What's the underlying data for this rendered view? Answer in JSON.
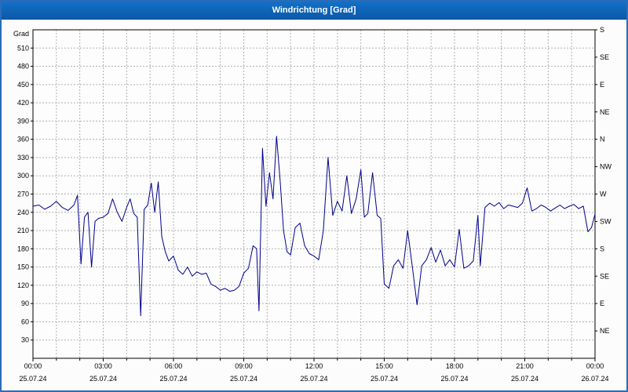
{
  "window": {
    "title": "Windrichtung [Grad]"
  },
  "colors": {
    "titlebar": "#0a5fb4",
    "line": "#00008b",
    "grid": "#b0b0b0",
    "plot_border": "#000000",
    "outer_border": "#2b6cb8",
    "background": "#fcfcfc",
    "plot_background": "#fdfdfd"
  },
  "chart_data": {
    "type": "line",
    "title": "Windrichtung [Grad]",
    "ylabel": "Grad",
    "xlabel": "",
    "xlim": [
      0,
      24
    ],
    "ylim": [
      0,
      540
    ],
    "grid": "dashed, hourly vertical and 30-degree horizontal",
    "legend_position": "none",
    "y_ticks": [
      30,
      60,
      90,
      120,
      150,
      180,
      210,
      240,
      270,
      300,
      330,
      360,
      390,
      420,
      450,
      480,
      510
    ],
    "x_ticks": [
      {
        "h": 0,
        "time": "00:00",
        "date": "25.07.24"
      },
      {
        "h": 3,
        "time": "03:00",
        "date": "25.07.24"
      },
      {
        "h": 6,
        "time": "06:00",
        "date": "25.07.24"
      },
      {
        "h": 9,
        "time": "09:00",
        "date": "25.07.24"
      },
      {
        "h": 12,
        "time": "12:00",
        "date": "25.07.24"
      },
      {
        "h": 15,
        "time": "15:00",
        "date": "25.07.24"
      },
      {
        "h": 18,
        "time": "18:00",
        "date": "25.07.24"
      },
      {
        "h": 21,
        "time": "21:00",
        "date": "25.07.24"
      },
      {
        "h": 24,
        "time": "00:00",
        "date": "26.07.24"
      }
    ],
    "right_axis_labels": [
      {
        "value": 540,
        "label": "S"
      },
      {
        "value": 495,
        "label": "SE"
      },
      {
        "value": 450,
        "label": "E"
      },
      {
        "value": 405,
        "label": "NE"
      },
      {
        "value": 360,
        "label": "N"
      },
      {
        "value": 315,
        "label": "NW"
      },
      {
        "value": 270,
        "label": "W"
      },
      {
        "value": 225,
        "label": "SW"
      },
      {
        "value": 180,
        "label": "S"
      },
      {
        "value": 135,
        "label": "SE"
      },
      {
        "value": 90,
        "label": "E"
      },
      {
        "value": 45,
        "label": "NE"
      }
    ],
    "series": [
      {
        "name": "Windrichtung",
        "unit": "Grad",
        "points": [
          [
            0,
            250
          ],
          [
            0.25,
            252
          ],
          [
            0.5,
            245
          ],
          [
            0.75,
            250
          ],
          [
            1,
            258
          ],
          [
            1.25,
            248
          ],
          [
            1.5,
            243
          ],
          [
            1.75,
            252
          ],
          [
            1.9,
            268
          ],
          [
            2.05,
            155
          ],
          [
            2.2,
            232
          ],
          [
            2.35,
            240
          ],
          [
            2.5,
            150
          ],
          [
            2.65,
            225
          ],
          [
            2.8,
            230
          ],
          [
            3,
            232
          ],
          [
            3.2,
            238
          ],
          [
            3.4,
            262
          ],
          [
            3.6,
            240
          ],
          [
            3.8,
            225
          ],
          [
            4,
            248
          ],
          [
            4.15,
            262
          ],
          [
            4.3,
            238
          ],
          [
            4.45,
            232
          ],
          [
            4.6,
            70
          ],
          [
            4.75,
            245
          ],
          [
            4.9,
            252
          ],
          [
            5.05,
            288
          ],
          [
            5.2,
            240
          ],
          [
            5.35,
            290
          ],
          [
            5.5,
            200
          ],
          [
            5.65,
            175
          ],
          [
            5.8,
            160
          ],
          [
            6,
            168
          ],
          [
            6.2,
            145
          ],
          [
            6.4,
            138
          ],
          [
            6.6,
            150
          ],
          [
            6.8,
            135
          ],
          [
            7,
            142
          ],
          [
            7.2,
            138
          ],
          [
            7.4,
            140
          ],
          [
            7.6,
            122
          ],
          [
            7.8,
            118
          ],
          [
            8,
            112
          ],
          [
            8.2,
            115
          ],
          [
            8.4,
            110
          ],
          [
            8.6,
            112
          ],
          [
            8.8,
            118
          ],
          [
            9,
            140
          ],
          [
            9.2,
            148
          ],
          [
            9.4,
            185
          ],
          [
            9.55,
            180
          ],
          [
            9.65,
            78
          ],
          [
            9.8,
            345
          ],
          [
            9.95,
            250
          ],
          [
            10.1,
            305
          ],
          [
            10.25,
            262
          ],
          [
            10.4,
            365
          ],
          [
            10.55,
            295
          ],
          [
            10.7,
            210
          ],
          [
            10.85,
            175
          ],
          [
            11,
            170
          ],
          [
            11.2,
            215
          ],
          [
            11.4,
            222
          ],
          [
            11.6,
            185
          ],
          [
            11.8,
            172
          ],
          [
            12,
            168
          ],
          [
            12.2,
            162
          ],
          [
            12.4,
            210
          ],
          [
            12.6,
            330
          ],
          [
            12.8,
            235
          ],
          [
            13,
            258
          ],
          [
            13.2,
            242
          ],
          [
            13.4,
            300
          ],
          [
            13.6,
            238
          ],
          [
            13.8,
            262
          ],
          [
            14,
            310
          ],
          [
            14.15,
            232
          ],
          [
            14.3,
            238
          ],
          [
            14.5,
            305
          ],
          [
            14.7,
            235
          ],
          [
            14.85,
            230
          ],
          [
            15,
            122
          ],
          [
            15.2,
            115
          ],
          [
            15.4,
            152
          ],
          [
            15.6,
            162
          ],
          [
            15.8,
            148
          ],
          [
            16,
            210
          ],
          [
            16.2,
            150
          ],
          [
            16.4,
            88
          ],
          [
            16.6,
            152
          ],
          [
            16.8,
            162
          ],
          [
            17,
            182
          ],
          [
            17.2,
            158
          ],
          [
            17.4,
            178
          ],
          [
            17.6,
            152
          ],
          [
            17.8,
            162
          ],
          [
            18,
            150
          ],
          [
            18.2,
            212
          ],
          [
            18.4,
            148
          ],
          [
            18.6,
            152
          ],
          [
            18.8,
            160
          ],
          [
            19,
            235
          ],
          [
            19.1,
            152
          ],
          [
            19.3,
            248
          ],
          [
            19.5,
            255
          ],
          [
            19.7,
            250
          ],
          [
            19.9,
            256
          ],
          [
            20.1,
            246
          ],
          [
            20.3,
            252
          ],
          [
            20.5,
            250
          ],
          [
            20.7,
            248
          ],
          [
            20.9,
            255
          ],
          [
            21.1,
            280
          ],
          [
            21.3,
            242
          ],
          [
            21.5,
            246
          ],
          [
            21.7,
            252
          ],
          [
            21.9,
            248
          ],
          [
            22.1,
            242
          ],
          [
            22.3,
            247
          ],
          [
            22.5,
            252
          ],
          [
            22.7,
            246
          ],
          [
            22.9,
            250
          ],
          [
            23.1,
            253
          ],
          [
            23.3,
            246
          ],
          [
            23.5,
            250
          ],
          [
            23.7,
            208
          ],
          [
            23.85,
            215
          ],
          [
            24,
            237
          ]
        ]
      }
    ]
  }
}
